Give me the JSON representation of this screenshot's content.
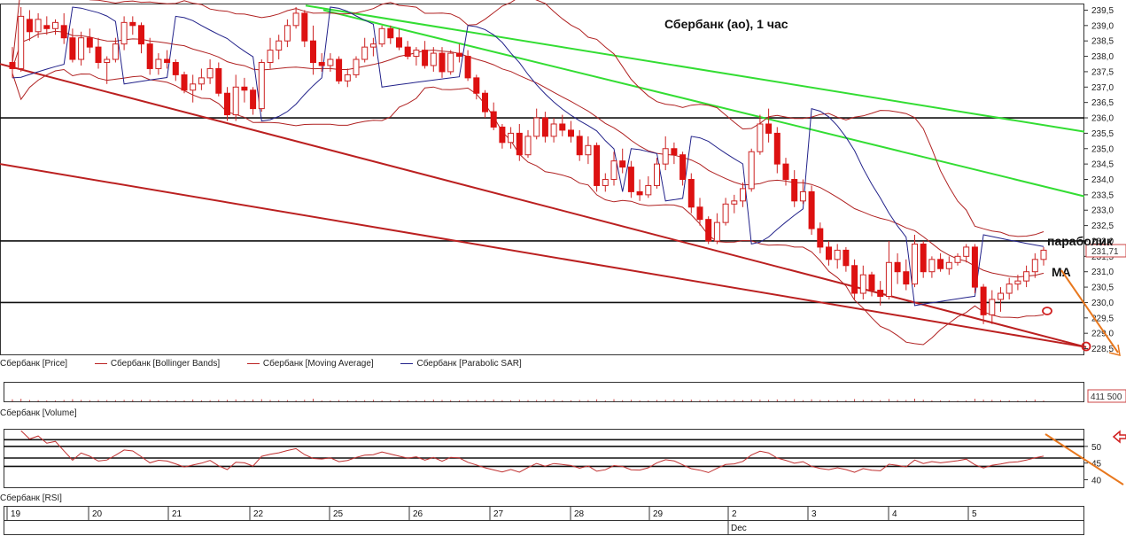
{
  "chart_data": {
    "type": "candlestick",
    "title": "Сбербанк (ао),  1 час",
    "annotations": [
      "параболик",
      "МА"
    ],
    "price_axis": {
      "ylim": [
        228.3,
        239.7
      ],
      "ticks": [
        "239,5",
        "239,0",
        "238,5",
        "238,0",
        "237,5",
        "237,0",
        "236,5",
        "236,0",
        "235,5",
        "235,0",
        "234,5",
        "234,0",
        "233,5",
        "233,0",
        "232,5",
        "232,0",
        "231,5",
        "231,0",
        "230,5",
        "230,0",
        "229,5",
        "229,0",
        "228,5"
      ],
      "last_price_label": "231,71"
    },
    "horizontal_levels": [
      236.0,
      232.0,
      230.0
    ],
    "legend": [
      {
        "label": "Сбербанк [Price]",
        "color": "#cc2222"
      },
      {
        "label": "Сбербанк [Bollinger Bands]",
        "color": "#aa2222"
      },
      {
        "label": "Сбербанк [Moving Average]",
        "color": "#aa2222"
      },
      {
        "label": "Сбербанк [Parabolic SAR]",
        "color": "#22228a"
      }
    ],
    "volume": {
      "label": "Сбербанк [Volume]",
      "last_value_label": "411 500"
    },
    "rsi": {
      "label": "Сбербанк [RSI]",
      "ticks": [
        "50",
        "45",
        "40"
      ],
      "levels": [
        52,
        50,
        46.5,
        44
      ]
    },
    "x_axis": {
      "day_labels": [
        "19",
        "20",
        "21",
        "22",
        "25",
        "26",
        "27",
        "28",
        "29",
        "2",
        "3",
        "4",
        "5"
      ],
      "month_label": "Dec"
    },
    "candles": [
      {
        "o": 237.8,
        "h": 238.3,
        "l": 237.3,
        "c": 237.6
      },
      {
        "o": 237.6,
        "h": 239.6,
        "l": 237.5,
        "c": 239.3
      },
      {
        "o": 239.2,
        "h": 239.5,
        "l": 238.5,
        "c": 238.8
      },
      {
        "o": 238.8,
        "h": 239.4,
        "l": 238.6,
        "c": 239.2
      },
      {
        "o": 239.0,
        "h": 239.3,
        "l": 238.7,
        "c": 238.9
      },
      {
        "o": 238.9,
        "h": 239.2,
        "l": 238.7,
        "c": 239.1
      },
      {
        "o": 239.0,
        "h": 239.4,
        "l": 238.4,
        "c": 238.6
      },
      {
        "o": 238.6,
        "h": 238.9,
        "l": 237.8,
        "c": 237.9
      },
      {
        "o": 237.9,
        "h": 238.8,
        "l": 237.7,
        "c": 238.6
      },
      {
        "o": 238.6,
        "h": 238.9,
        "l": 238.1,
        "c": 238.3
      },
      {
        "o": 238.3,
        "h": 238.6,
        "l": 237.6,
        "c": 237.8
      },
      {
        "o": 237.8,
        "h": 238.0,
        "l": 237.1,
        "c": 237.9
      },
      {
        "o": 237.9,
        "h": 238.6,
        "l": 237.8,
        "c": 238.4
      },
      {
        "o": 238.4,
        "h": 239.3,
        "l": 238.2,
        "c": 239.1
      },
      {
        "o": 239.1,
        "h": 239.3,
        "l": 238.7,
        "c": 239.0
      },
      {
        "o": 239.0,
        "h": 239.1,
        "l": 238.1,
        "c": 238.4
      },
      {
        "o": 238.4,
        "h": 238.6,
        "l": 237.4,
        "c": 237.6
      },
      {
        "o": 237.6,
        "h": 238.1,
        "l": 237.4,
        "c": 237.9
      },
      {
        "o": 237.9,
        "h": 238.2,
        "l": 237.6,
        "c": 237.8
      },
      {
        "o": 237.8,
        "h": 237.9,
        "l": 237.2,
        "c": 237.4
      },
      {
        "o": 237.4,
        "h": 237.5,
        "l": 236.8,
        "c": 236.9
      },
      {
        "o": 236.9,
        "h": 237.4,
        "l": 236.5,
        "c": 237.1
      },
      {
        "o": 237.1,
        "h": 237.6,
        "l": 236.9,
        "c": 237.3
      },
      {
        "o": 237.3,
        "h": 237.9,
        "l": 237.1,
        "c": 237.6
      },
      {
        "o": 237.6,
        "h": 237.8,
        "l": 236.7,
        "c": 236.8
      },
      {
        "o": 236.8,
        "h": 237.0,
        "l": 235.9,
        "c": 236.1
      },
      {
        "o": 236.1,
        "h": 237.4,
        "l": 235.9,
        "c": 237.0
      },
      {
        "o": 237.0,
        "h": 237.3,
        "l": 236.5,
        "c": 236.9
      },
      {
        "o": 236.9,
        "h": 237.0,
        "l": 236.1,
        "c": 236.3
      },
      {
        "o": 236.3,
        "h": 237.9,
        "l": 236.2,
        "c": 237.8
      },
      {
        "o": 237.8,
        "h": 238.6,
        "l": 237.6,
        "c": 238.2
      },
      {
        "o": 238.2,
        "h": 238.7,
        "l": 237.9,
        "c": 238.5
      },
      {
        "o": 238.5,
        "h": 239.2,
        "l": 238.3,
        "c": 239.0
      },
      {
        "o": 239.0,
        "h": 239.6,
        "l": 238.9,
        "c": 239.4
      },
      {
        "o": 239.4,
        "h": 239.5,
        "l": 238.3,
        "c": 238.5
      },
      {
        "o": 238.5,
        "h": 239.0,
        "l": 237.4,
        "c": 237.8
      },
      {
        "o": 237.8,
        "h": 238.1,
        "l": 237.5,
        "c": 237.7
      },
      {
        "o": 237.7,
        "h": 238.1,
        "l": 237.5,
        "c": 237.9
      },
      {
        "o": 237.9,
        "h": 238.0,
        "l": 237.1,
        "c": 237.2
      },
      {
        "o": 237.2,
        "h": 237.6,
        "l": 237.0,
        "c": 237.4
      },
      {
        "o": 237.4,
        "h": 238.0,
        "l": 237.3,
        "c": 237.9
      },
      {
        "o": 237.9,
        "h": 238.6,
        "l": 237.8,
        "c": 238.3
      },
      {
        "o": 238.3,
        "h": 238.6,
        "l": 238.0,
        "c": 238.4
      },
      {
        "o": 238.4,
        "h": 239.0,
        "l": 238.3,
        "c": 238.9
      },
      {
        "o": 238.9,
        "h": 239.0,
        "l": 238.4,
        "c": 238.6
      },
      {
        "o": 238.6,
        "h": 238.9,
        "l": 238.2,
        "c": 238.3
      },
      {
        "o": 238.3,
        "h": 238.5,
        "l": 237.9,
        "c": 238.0
      },
      {
        "o": 238.0,
        "h": 238.3,
        "l": 237.7,
        "c": 238.2
      },
      {
        "o": 238.2,
        "h": 238.5,
        "l": 237.6,
        "c": 237.7
      },
      {
        "o": 237.7,
        "h": 238.3,
        "l": 237.5,
        "c": 238.1
      },
      {
        "o": 238.1,
        "h": 238.3,
        "l": 237.3,
        "c": 237.5
      },
      {
        "o": 237.5,
        "h": 238.2,
        "l": 237.4,
        "c": 238.1
      },
      {
        "o": 238.1,
        "h": 238.4,
        "l": 237.8,
        "c": 238.0
      },
      {
        "o": 238.0,
        "h": 238.2,
        "l": 237.2,
        "c": 237.3
      },
      {
        "o": 237.3,
        "h": 237.4,
        "l": 236.6,
        "c": 236.8
      },
      {
        "o": 236.8,
        "h": 236.9,
        "l": 236.0,
        "c": 236.2
      },
      {
        "o": 236.2,
        "h": 236.5,
        "l": 235.6,
        "c": 235.7
      },
      {
        "o": 235.7,
        "h": 235.8,
        "l": 235.0,
        "c": 235.2
      },
      {
        "o": 235.2,
        "h": 235.7,
        "l": 235.0,
        "c": 235.5
      },
      {
        "o": 235.5,
        "h": 235.8,
        "l": 234.6,
        "c": 234.8
      },
      {
        "o": 234.8,
        "h": 235.6,
        "l": 234.7,
        "c": 235.4
      },
      {
        "o": 235.4,
        "h": 236.3,
        "l": 235.3,
        "c": 236.0
      },
      {
        "o": 236.0,
        "h": 236.2,
        "l": 235.2,
        "c": 235.4
      },
      {
        "o": 235.4,
        "h": 236.0,
        "l": 235.2,
        "c": 235.8
      },
      {
        "o": 235.8,
        "h": 236.1,
        "l": 235.4,
        "c": 235.6
      },
      {
        "o": 235.6,
        "h": 235.9,
        "l": 235.2,
        "c": 235.4
      },
      {
        "o": 235.4,
        "h": 235.6,
        "l": 234.6,
        "c": 234.8
      },
      {
        "o": 234.8,
        "h": 235.4,
        "l": 234.5,
        "c": 235.1
      },
      {
        "o": 235.1,
        "h": 235.2,
        "l": 233.6,
        "c": 233.8
      },
      {
        "o": 233.8,
        "h": 234.2,
        "l": 233.6,
        "c": 234.0
      },
      {
        "o": 234.0,
        "h": 234.9,
        "l": 233.8,
        "c": 234.6
      },
      {
        "o": 234.6,
        "h": 235.0,
        "l": 234.2,
        "c": 234.4
      },
      {
        "o": 234.4,
        "h": 234.6,
        "l": 233.4,
        "c": 233.6
      },
      {
        "o": 233.6,
        "h": 234.0,
        "l": 233.3,
        "c": 233.5
      },
      {
        "o": 233.5,
        "h": 234.1,
        "l": 233.4,
        "c": 233.8
      },
      {
        "o": 233.8,
        "h": 234.7,
        "l": 233.7,
        "c": 234.5
      },
      {
        "o": 234.5,
        "h": 235.4,
        "l": 234.3,
        "c": 235.0
      },
      {
        "o": 235.0,
        "h": 235.2,
        "l": 234.5,
        "c": 234.8
      },
      {
        "o": 234.8,
        "h": 234.9,
        "l": 233.8,
        "c": 234.0
      },
      {
        "o": 234.0,
        "h": 234.2,
        "l": 232.9,
        "c": 233.1
      },
      {
        "o": 233.1,
        "h": 233.4,
        "l": 232.5,
        "c": 232.7
      },
      {
        "o": 232.7,
        "h": 232.8,
        "l": 231.9,
        "c": 232.0
      },
      {
        "o": 232.0,
        "h": 232.9,
        "l": 231.9,
        "c": 232.6
      },
      {
        "o": 232.6,
        "h": 233.4,
        "l": 232.5,
        "c": 233.2
      },
      {
        "o": 233.2,
        "h": 233.5,
        "l": 232.9,
        "c": 233.3
      },
      {
        "o": 233.3,
        "h": 233.9,
        "l": 233.1,
        "c": 233.7
      },
      {
        "o": 233.7,
        "h": 235.0,
        "l": 233.6,
        "c": 234.9
      },
      {
        "o": 234.9,
        "h": 236.1,
        "l": 234.8,
        "c": 235.8
      },
      {
        "o": 235.8,
        "h": 236.3,
        "l": 235.2,
        "c": 235.5
      },
      {
        "o": 235.5,
        "h": 235.7,
        "l": 234.2,
        "c": 234.5
      },
      {
        "o": 234.5,
        "h": 234.7,
        "l": 233.8,
        "c": 234.0
      },
      {
        "o": 234.0,
        "h": 234.3,
        "l": 233.1,
        "c": 233.3
      },
      {
        "o": 233.3,
        "h": 234.0,
        "l": 233.2,
        "c": 233.6
      },
      {
        "o": 233.6,
        "h": 233.8,
        "l": 232.2,
        "c": 232.4
      },
      {
        "o": 232.4,
        "h": 232.6,
        "l": 231.6,
        "c": 231.8
      },
      {
        "o": 231.8,
        "h": 232.0,
        "l": 231.2,
        "c": 231.4
      },
      {
        "o": 231.4,
        "h": 231.9,
        "l": 231.1,
        "c": 231.7
      },
      {
        "o": 231.7,
        "h": 231.8,
        "l": 231.0,
        "c": 231.2
      },
      {
        "o": 231.2,
        "h": 231.4,
        "l": 230.1,
        "c": 230.3
      },
      {
        "o": 230.3,
        "h": 231.2,
        "l": 230.1,
        "c": 230.9
      },
      {
        "o": 230.9,
        "h": 231.0,
        "l": 230.2,
        "c": 230.4
      },
      {
        "o": 230.4,
        "h": 230.7,
        "l": 229.9,
        "c": 230.2
      },
      {
        "o": 230.2,
        "h": 232.0,
        "l": 230.1,
        "c": 231.3
      },
      {
        "o": 231.3,
        "h": 231.6,
        "l": 230.6,
        "c": 231.0
      },
      {
        "o": 231.0,
        "h": 231.4,
        "l": 230.4,
        "c": 230.6
      },
      {
        "o": 230.6,
        "h": 232.2,
        "l": 230.5,
        "c": 231.9
      },
      {
        "o": 231.9,
        "h": 232.0,
        "l": 230.8,
        "c": 231.0
      },
      {
        "o": 231.0,
        "h": 231.5,
        "l": 230.8,
        "c": 231.4
      },
      {
        "o": 231.4,
        "h": 231.6,
        "l": 231.0,
        "c": 231.1
      },
      {
        "o": 231.1,
        "h": 231.5,
        "l": 230.9,
        "c": 231.3
      },
      {
        "o": 231.3,
        "h": 231.6,
        "l": 231.2,
        "c": 231.5
      },
      {
        "o": 231.5,
        "h": 231.9,
        "l": 231.3,
        "c": 231.8
      },
      {
        "o": 231.8,
        "h": 231.9,
        "l": 230.3,
        "c": 230.5
      },
      {
        "o": 230.5,
        "h": 230.6,
        "l": 229.3,
        "c": 229.6
      },
      {
        "o": 229.6,
        "h": 230.4,
        "l": 229.3,
        "c": 230.1
      },
      {
        "o": 230.1,
        "h": 230.5,
        "l": 229.7,
        "c": 230.3
      },
      {
        "o": 230.3,
        "h": 230.8,
        "l": 230.1,
        "c": 230.6
      },
      {
        "o": 230.6,
        "h": 230.9,
        "l": 230.4,
        "c": 230.7
      },
      {
        "o": 230.7,
        "h": 231.2,
        "l": 230.5,
        "c": 231.0
      },
      {
        "o": 231.0,
        "h": 231.6,
        "l": 230.8,
        "c": 231.4
      },
      {
        "o": 231.4,
        "h": 231.8,
        "l": 231.2,
        "c": 231.7
      }
    ]
  }
}
